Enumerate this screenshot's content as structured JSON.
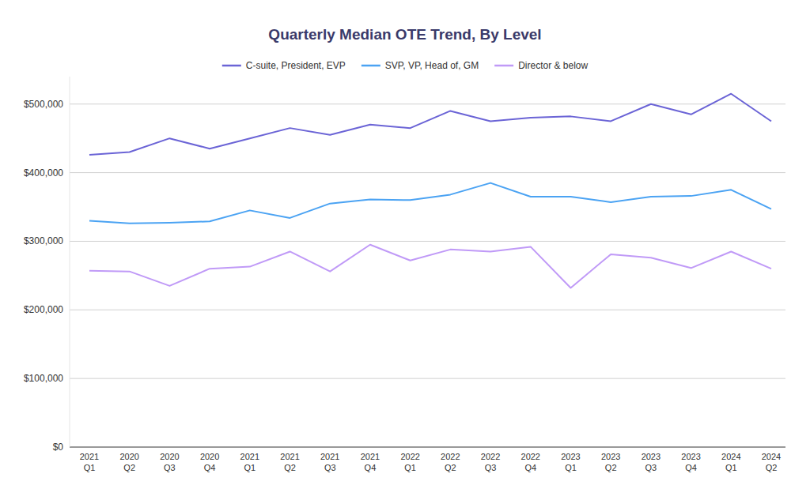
{
  "chart_data": {
    "type": "line",
    "title": "Quarterly Median OTE Trend, By Level",
    "categories": [
      "2021 Q1",
      "2020 Q2",
      "2020 Q3",
      "2020 Q4",
      "2021 Q1",
      "2021 Q2",
      "2021 Q3",
      "2021 Q4",
      "2022 Q1",
      "2022 Q2",
      "2022 Q3",
      "2022 Q4",
      "2023 Q1",
      "2023 Q2",
      "2023 Q3",
      "2023 Q4",
      "2024 Q1",
      "2024 Q2"
    ],
    "series": [
      {
        "name": "C-suite, President, EVP",
        "color": "#6b64d6",
        "values": [
          426000,
          430000,
          450000,
          435000,
          450000,
          465000,
          455000,
          470000,
          465000,
          490000,
          475000,
          480000,
          482000,
          475000,
          500000,
          485000,
          515000,
          475000
        ]
      },
      {
        "name": "SVP, VP, Head of, GM",
        "color": "#4ba3f3",
        "values": [
          330000,
          326000,
          327000,
          329000,
          345000,
          334000,
          355000,
          361000,
          360000,
          368000,
          385000,
          365000,
          365000,
          357000,
          365000,
          366000,
          375000,
          347000
        ]
      },
      {
        "name": "Director & below",
        "color": "#c09af7",
        "values": [
          257000,
          256000,
          235000,
          260000,
          263000,
          285000,
          256000,
          295000,
          272000,
          288000,
          285000,
          292000,
          232000,
          281000,
          276000,
          261000,
          285000,
          260000
        ]
      }
    ],
    "ylim": [
      0,
      540000
    ],
    "yticks": [
      {
        "value": 0,
        "label": "$0"
      },
      {
        "value": 100000,
        "label": "$100,000"
      },
      {
        "value": 200000,
        "label": "$200,000"
      },
      {
        "value": 300000,
        "label": "$300,000"
      },
      {
        "value": 400000,
        "label": "$400,000"
      },
      {
        "value": 500000,
        "label": "$500,000"
      }
    ],
    "grid": true,
    "legend": "top"
  }
}
